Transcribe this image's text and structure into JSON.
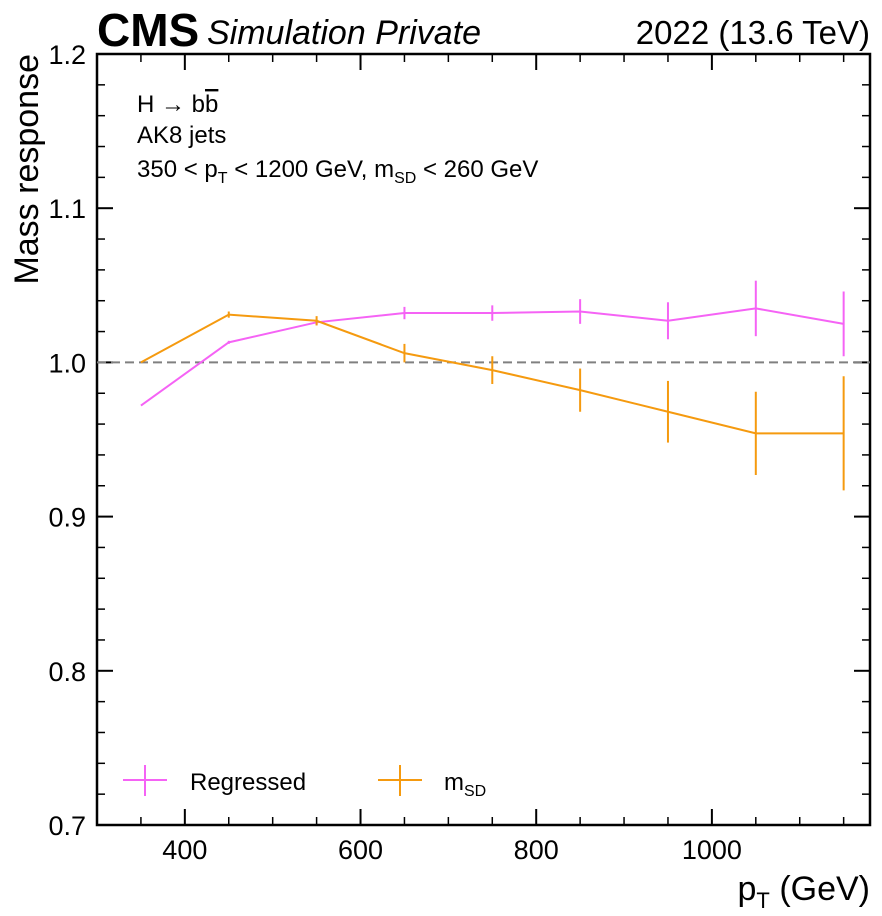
{
  "header": {
    "experiment": "CMS",
    "tag": "Simulation Private",
    "lumi": "2022 (13.6 TeV)"
  },
  "annotations": {
    "process_prefix": "H → b",
    "process_suffix": "b",
    "jets": "AK8 jets",
    "pt_lo": "350 < p",
    "pt_sub": "T",
    "pt_mid": " < 1200 GeV, m",
    "msd_sub": "SD",
    "msd_hi": " < 260 GeV"
  },
  "axes": {
    "xlabel_main": "p",
    "xlabel_sub": "T",
    "xlabel_unit": " (GeV)",
    "ylabel": "Mass response"
  },
  "colors": {
    "regressed": "#f563f5",
    "msd": "#f59a0f",
    "reference": "#808080"
  },
  "chart_data": {
    "type": "line",
    "xlim": [
      300,
      1180
    ],
    "ylim": [
      0.7,
      1.2
    ],
    "x_ticks": [
      400,
      600,
      800,
      1000
    ],
    "x_tick_labels": [
      "400",
      "600",
      "800",
      "1000"
    ],
    "y_ticks": [
      0.7,
      0.8,
      0.9,
      1.0,
      1.1,
      1.2
    ],
    "y_tick_labels": [
      "0.7",
      "0.8",
      "0.9",
      "1.0",
      "1.1",
      "1.2"
    ],
    "x_minor_step": 50,
    "y_minor_step": 0.02,
    "reference_line": 1.0,
    "legend_position": "bottom-left",
    "x": [
      350,
      450,
      550,
      650,
      750,
      850,
      950,
      1050,
      1150
    ],
    "series": [
      {
        "name": "Regressed",
        "key": "regressed",
        "values": [
          0.972,
          1.013,
          1.026,
          1.032,
          1.032,
          1.033,
          1.027,
          1.035,
          1.025
        ],
        "errors": [
          0.0,
          0.001,
          0.002,
          0.004,
          0.005,
          0.008,
          0.012,
          0.018,
          0.021
        ]
      },
      {
        "name": "m",
        "name_sub": "SD",
        "key": "msd",
        "values": [
          1.0,
          1.031,
          1.027,
          1.006,
          0.995,
          0.982,
          0.968,
          0.954,
          0.954
        ],
        "errors": [
          0.0,
          0.002,
          0.003,
          0.006,
          0.009,
          0.014,
          0.02,
          0.027,
          0.037
        ]
      }
    ]
  }
}
